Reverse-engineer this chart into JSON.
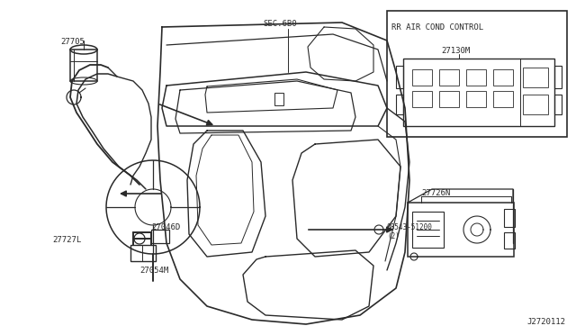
{
  "bg_color": "#ffffff",
  "line_color": "#2a2a2a",
  "text_color": "#2a2a2a",
  "fig_width": 6.4,
  "fig_height": 3.72,
  "dpi": 100,
  "diagram_number": "J2720112",
  "inset_label": "RR AIR COND CONTROL",
  "sec_label": "SEC.6B0",
  "label_27705": "27705",
  "label_27727L": "27727L",
  "label_27046D": "27046D",
  "label_27054M": "27054M",
  "label_27726N": "27726N",
  "label_27130M": "27130M",
  "label_screw": "08543-51200\n(2)",
  "font_size": 6.5,
  "font_family": "monospace"
}
